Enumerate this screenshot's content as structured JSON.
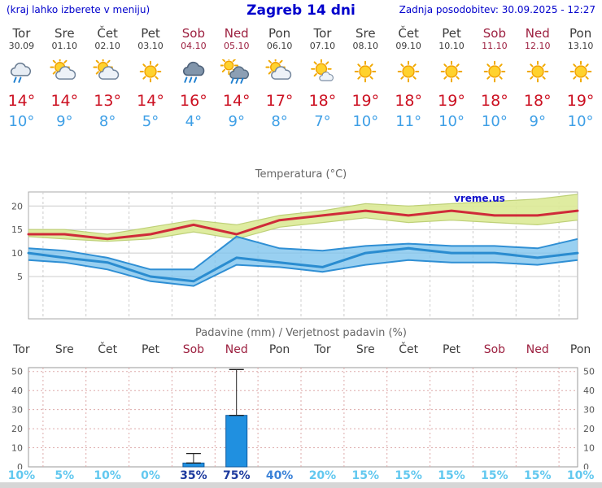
{
  "header": {
    "menu_note": "(kraj lahko izberete v meniju)",
    "title": "Zagreb 14 dni",
    "last_update": "Zadnja posodobitev: 30.09.2025 - 12:27"
  },
  "colors": {
    "header_blue": "#0000cc",
    "tmax_red": "#cc1122",
    "tmin_blue": "#3e9fe6",
    "weekend_red": "#9c1f3f",
    "weekday_gray": "#3c3c3c",
    "bar_blue": "#2090e0",
    "prob_low": "#62c8ef",
    "prob_mid": "#3b82d8",
    "prob_high": "#1d3a9e"
  },
  "days": [
    {
      "name": "Tor",
      "date": "30.09",
      "weekend": false,
      "icon": "drizzle"
    },
    {
      "name": "Sre",
      "date": "01.10",
      "weekend": false,
      "icon": "partly"
    },
    {
      "name": "Čet",
      "date": "02.10",
      "weekend": false,
      "icon": "partly"
    },
    {
      "name": "Pet",
      "date": "03.10",
      "weekend": false,
      "icon": "sunny"
    },
    {
      "name": "Sob",
      "date": "04.10",
      "weekend": true,
      "icon": "rain"
    },
    {
      "name": "Ned",
      "date": "05.10",
      "weekend": true,
      "icon": "showers"
    },
    {
      "name": "Pon",
      "date": "06.10",
      "weekend": false,
      "icon": "partly"
    },
    {
      "name": "Tor",
      "date": "07.10",
      "weekend": false,
      "icon": "mostly-sunny"
    },
    {
      "name": "Sre",
      "date": "08.10",
      "weekend": false,
      "icon": "sunny"
    },
    {
      "name": "Čet",
      "date": "09.10",
      "weekend": false,
      "icon": "sunny"
    },
    {
      "name": "Pet",
      "date": "10.10",
      "weekend": false,
      "icon": "sunny"
    },
    {
      "name": "Sob",
      "date": "11.10",
      "weekend": true,
      "icon": "sunny"
    },
    {
      "name": "Ned",
      "date": "12.10",
      "weekend": true,
      "icon": "sunny"
    },
    {
      "name": "Pon",
      "date": "13.10",
      "weekend": false,
      "icon": "sunny"
    }
  ],
  "chart_data": [
    {
      "type": "line",
      "title": "Temperatura (°C)",
      "watermark": "vreme.us",
      "categories": [
        "Tor 30.09",
        "Sre 01.10",
        "Čet 02.10",
        "Pet 03.10",
        "Sob 04.10",
        "Ned 05.10",
        "Pon 06.10",
        "Tor 07.10",
        "Sre 08.10",
        "Čet 09.10",
        "Pet 10.10",
        "Sob 11.10",
        "Ned 12.10",
        "Pon 13.10"
      ],
      "series": [
        {
          "name": "Najvišja temperatura",
          "color": "#cf2b39",
          "width": 3,
          "values": [
            14,
            14,
            13,
            14,
            16,
            14,
            17,
            18,
            19,
            18,
            19,
            18,
            18,
            19
          ]
        },
        {
          "name": "Najnižja temperatura",
          "color": "#2a8cd0",
          "width": 3,
          "values": [
            10,
            9,
            8,
            5,
            4,
            9,
            8,
            7,
            10,
            11,
            10,
            10,
            9,
            10
          ]
        }
      ],
      "bands": [
        {
          "name": "tmax-range",
          "fill": "#dcea96",
          "edge": "#bed077",
          "edge_width": 1.2,
          "opacity": 0.9,
          "upper": [
            15,
            15,
            14,
            15.5,
            17,
            16,
            18,
            19,
            20.5,
            20,
            20.5,
            21,
            21.5,
            22.5
          ],
          "lower": [
            13.5,
            13,
            12.5,
            13,
            14.5,
            13,
            15.5,
            16.5,
            17.5,
            16.5,
            17,
            16.5,
            16,
            17
          ]
        },
        {
          "name": "tmin-range",
          "fill": "#7cc3ed",
          "edge": "#2f8fd4",
          "edge_width": 2,
          "opacity": 0.78,
          "upper": [
            11,
            10.5,
            9,
            6.5,
            6.5,
            13.5,
            11,
            10.5,
            11.5,
            12,
            11.5,
            11.5,
            11,
            13
          ],
          "lower": [
            8.5,
            8,
            6.5,
            4,
            3,
            7.5,
            7,
            6,
            7.5,
            8.5,
            8,
            8,
            7.5,
            8.5
          ]
        }
      ],
      "ylim": [
        -4,
        23
      ],
      "yticks": [
        5,
        10,
        15,
        20
      ],
      "grid": true,
      "legend_position": "none"
    },
    {
      "type": "bar",
      "title": "Padavine (mm) / Verjetnost padavin (%)",
      "categories": [
        "Tor",
        "Sre",
        "Čet",
        "Pet",
        "Sob",
        "Ned",
        "Pon",
        "Tor",
        "Sre",
        "Čet",
        "Pet",
        "Sob",
        "Ned",
        "Pon"
      ],
      "values_mm": [
        0,
        0,
        0,
        0,
        2,
        27,
        0,
        0,
        0,
        0,
        0,
        0,
        0,
        0
      ],
      "whisker_max_mm": [
        0,
        0,
        0,
        0,
        7,
        51,
        0,
        0,
        0,
        0,
        0,
        0,
        0,
        0
      ],
      "probabilities_pct": [
        10,
        5,
        10,
        0,
        35,
        75,
        40,
        20,
        15,
        15,
        15,
        15,
        15,
        10
      ],
      "probability_levels": [
        "low",
        "low",
        "low",
        "low",
        "high",
        "high",
        "mid",
        "low",
        "low",
        "low",
        "low",
        "low",
        "low",
        "low"
      ],
      "bar_color": "#2090e0",
      "ylim": [
        0,
        52
      ],
      "yticks": [
        0,
        10,
        20,
        30,
        40,
        50
      ],
      "grid": true,
      "legend_position": "none"
    }
  ]
}
